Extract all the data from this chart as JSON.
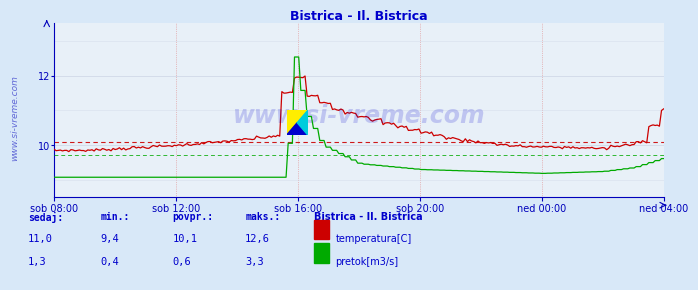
{
  "title": "Bistrica - Il. Bistrica",
  "title_color": "#0000cc",
  "bg_color": "#d8e8f8",
  "plot_bg_color": "#e8f0f8",
  "grid_color_v": "#e08888",
  "grid_color_h": "#d0d8e8",
  "x_tick_labels": [
    "sob 08:00",
    "sob 12:00",
    "sob 16:00",
    "sob 20:00",
    "ned 00:00",
    "ned 04:00"
  ],
  "ylim_temp": [
    8.5,
    13.5
  ],
  "ylim_flow": [
    -0.5,
    4.0
  ],
  "yticks_temp": [
    10,
    12
  ],
  "temp_avg": 10.1,
  "flow_avg": 0.6,
  "temp_color": "#cc0000",
  "flow_color": "#00aa00",
  "axis_color": "#0000bb",
  "tick_color": "#0000bb",
  "watermark_text": "www.si-vreme.com",
  "watermark_color": "#0000cc",
  "watermark_alpha": 0.18,
  "footer_labels": [
    "sedaj:",
    "min.:",
    "povpr.:",
    "maks.:"
  ],
  "footer_label_color": "#0000cc",
  "footer_temp_values": [
    "11,0",
    "9,4",
    "10,1",
    "12,6"
  ],
  "footer_flow_values": [
    "1,3",
    "0,4",
    "0,6",
    "3,3"
  ],
  "footer_value_color": "#0000cc",
  "legend_title": "Bistrica - Il. Bistrica",
  "legend_title_color": "#0000cc",
  "legend_entries": [
    "temperatura[C]",
    "pretok[m3/s]"
  ],
  "legend_colors": [
    "#cc0000",
    "#00aa00"
  ],
  "left_label": "www.si-vreme.com"
}
